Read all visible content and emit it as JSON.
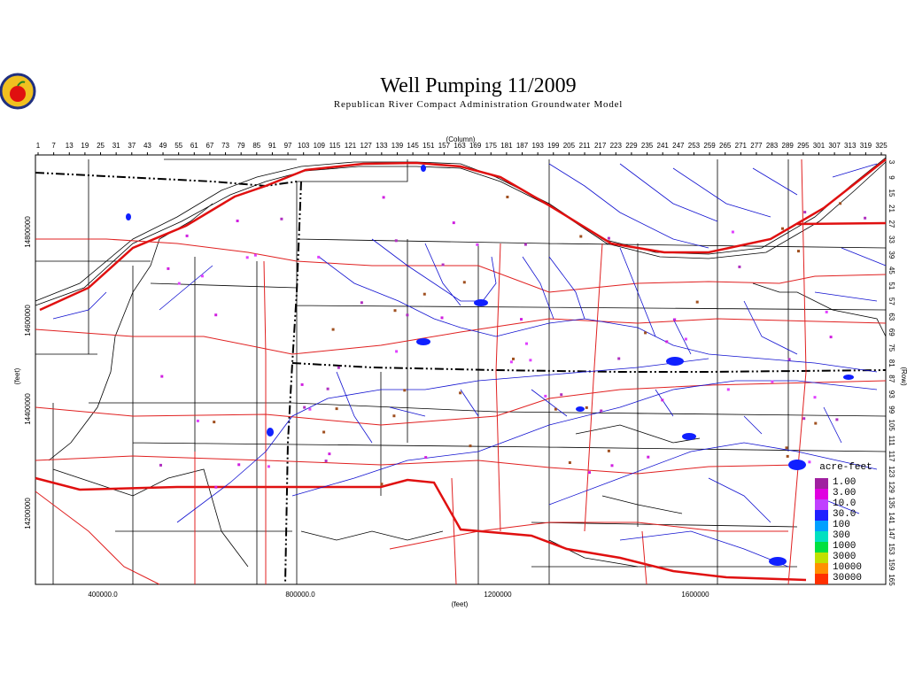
{
  "title": "Well Pumping 11/2009",
  "subtitle": "Republican River Compact Administration Groundwater Model",
  "column_axis": {
    "label": "(Column)",
    "ticks": [
      "1",
      "7",
      "13",
      "19",
      "25",
      "31",
      "37",
      "43",
      "49",
      "55",
      "61",
      "67",
      "73",
      "79",
      "85",
      "91",
      "97",
      "103",
      "109",
      "115",
      "121",
      "127",
      "133",
      "139",
      "145",
      "151",
      "157",
      "163",
      "169",
      "175",
      "181",
      "187",
      "193",
      "199",
      "205",
      "211",
      "217",
      "223",
      "229",
      "235",
      "241",
      "247",
      "253",
      "259",
      "265",
      "271",
      "277",
      "283",
      "289",
      "295",
      "301",
      "307",
      "313",
      "319",
      "325"
    ]
  },
  "row_axis": {
    "label": "(Row)",
    "ticks": [
      "3",
      "9",
      "15",
      "21",
      "27",
      "33",
      "39",
      "45",
      "51",
      "57",
      "63",
      "69",
      "75",
      "81",
      "87",
      "93",
      "99",
      "105",
      "111",
      "117",
      "123",
      "129",
      "135",
      "141",
      "147",
      "153",
      "159",
      "165"
    ]
  },
  "y_axis": {
    "label": "(feet)",
    "ticks": [
      "14800000",
      "14600000",
      "14400000",
      "14200000"
    ]
  },
  "x_axis": {
    "label": "(feet)",
    "ticks": [
      "400000.0",
      "800000.0",
      "1200000",
      "1600000"
    ]
  },
  "legend": {
    "title": "acre-feet",
    "entries": [
      {
        "label": "1.00",
        "color": "#a020a0"
      },
      {
        "label": "3.00",
        "color": "#e000e0"
      },
      {
        "label": "10.0",
        "color": "#c040ff"
      },
      {
        "label": "30.0",
        "color": "#2020ff"
      },
      {
        "label": "100",
        "color": "#00a0ff"
      },
      {
        "label": "300",
        "color": "#00e0c0"
      },
      {
        "label": "1000",
        "color": "#00e040"
      },
      {
        "label": "3000",
        "color": "#c0e000"
      },
      {
        "label": "10000",
        "color": "#ff9000"
      },
      {
        "label": "30000",
        "color": "#ff3000"
      }
    ]
  }
}
